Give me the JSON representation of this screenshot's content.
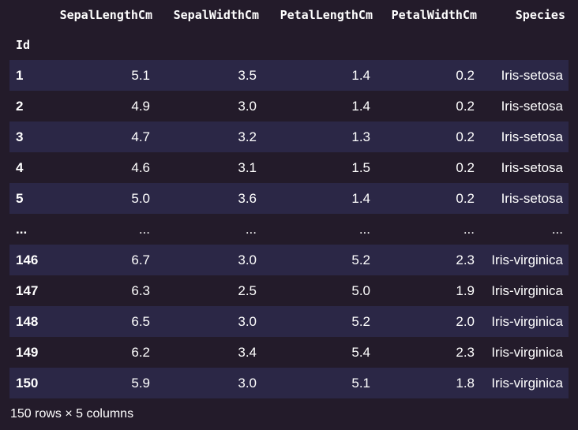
{
  "table": {
    "columns": [
      "SepalLengthCm",
      "SepalWidthCm",
      "PetalLengthCm",
      "PetalWidthCm",
      "Species"
    ],
    "index_name": "Id",
    "rows": [
      [
        "1",
        "5.1",
        "3.5",
        "1.4",
        "0.2",
        "Iris-setosa"
      ],
      [
        "2",
        "4.9",
        "3.0",
        "1.4",
        "0.2",
        "Iris-setosa"
      ],
      [
        "3",
        "4.7",
        "3.2",
        "1.3",
        "0.2",
        "Iris-setosa"
      ],
      [
        "4",
        "4.6",
        "3.1",
        "1.5",
        "0.2",
        "Iris-setosa"
      ],
      [
        "5",
        "5.0",
        "3.6",
        "1.4",
        "0.2",
        "Iris-setosa"
      ],
      [
        "...",
        "...",
        "...",
        "...",
        "...",
        "..."
      ],
      [
        "146",
        "6.7",
        "3.0",
        "5.2",
        "2.3",
        "Iris-virginica"
      ],
      [
        "147",
        "6.3",
        "2.5",
        "5.0",
        "1.9",
        "Iris-virginica"
      ],
      [
        "148",
        "6.5",
        "3.0",
        "5.2",
        "2.0",
        "Iris-virginica"
      ],
      [
        "149",
        "6.2",
        "3.4",
        "5.4",
        "2.3",
        "Iris-virginica"
      ],
      [
        "150",
        "5.9",
        "3.0",
        "5.1",
        "1.8",
        "Iris-virginica"
      ]
    ],
    "shape_text": "150 rows × 5 columns"
  },
  "colors": {
    "background": "#231b2a",
    "row_stripe": "#2b2746",
    "text": "#ffffff"
  }
}
